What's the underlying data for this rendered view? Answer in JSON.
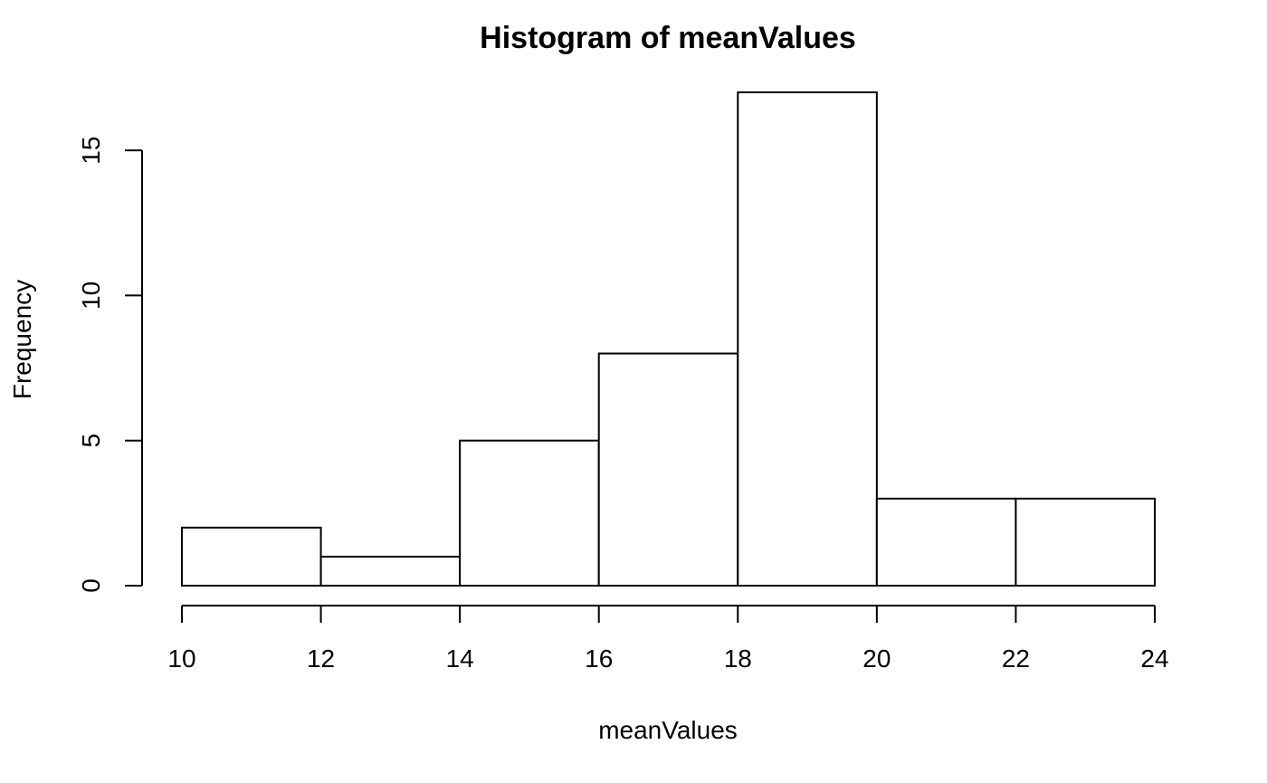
{
  "chart_data": {
    "type": "bar",
    "title": "Histogram of meanValues",
    "xlabel": "meanValues",
    "ylabel": "Frequency",
    "bins": [
      {
        "start": 10,
        "end": 12,
        "count": 2
      },
      {
        "start": 12,
        "end": 14,
        "count": 1
      },
      {
        "start": 14,
        "end": 16,
        "count": 5
      },
      {
        "start": 16,
        "end": 18,
        "count": 8
      },
      {
        "start": 18,
        "end": 20,
        "count": 17
      },
      {
        "start": 20,
        "end": 22,
        "count": 3
      },
      {
        "start": 22,
        "end": 24,
        "count": 3
      }
    ],
    "x_ticks": [
      10,
      12,
      14,
      16,
      18,
      20,
      22,
      24
    ],
    "y_ticks": [
      0,
      5,
      10,
      15
    ],
    "xlim": [
      10,
      24
    ],
    "ylim": [
      0,
      17
    ],
    "grid": false,
    "bar_fill": "#ffffff",
    "bar_stroke": "#000000"
  }
}
